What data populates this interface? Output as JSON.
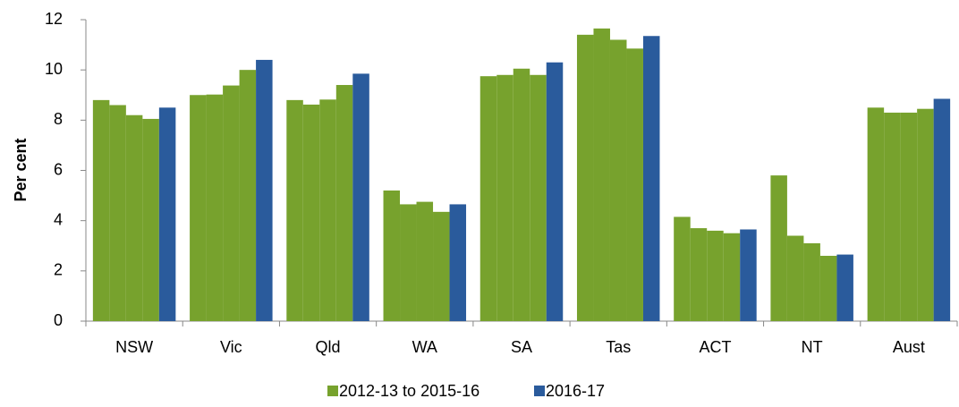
{
  "chart_data": {
    "type": "bar",
    "y_label": "Per cent",
    "categories": [
      "NSW",
      "Vic",
      "Qld",
      "WA",
      "SA",
      "Tas",
      "ACT",
      "NT",
      "Aust"
    ],
    "series": [
      {
        "name": "2012-13 to 2015-16",
        "color": "#77a22d",
        "values": [
          [
            8.8,
            8.6,
            8.2,
            8.05
          ],
          [
            9.0,
            9.02,
            9.38,
            10.0
          ],
          [
            8.8,
            8.62,
            8.82,
            9.4
          ],
          [
            5.2,
            4.65,
            4.75,
            4.35
          ],
          [
            9.75,
            9.8,
            10.05,
            9.8
          ],
          [
            11.4,
            11.65,
            11.2,
            10.85
          ],
          [
            4.15,
            3.7,
            3.6,
            3.5
          ],
          [
            5.8,
            3.4,
            3.1,
            2.6
          ],
          [
            8.5,
            8.3,
            8.3,
            8.45
          ]
        ]
      },
      {
        "name": "2016-17",
        "color": "#2a5b9c",
        "values": [
          8.5,
          10.4,
          9.85,
          4.65,
          10.3,
          11.35,
          3.65,
          2.65,
          8.85
        ]
      }
    ],
    "ylim": [
      0,
      12
    ],
    "yticks": [
      0,
      2,
      4,
      6,
      8,
      10,
      12
    ],
    "grid": false,
    "legend": "bottom"
  }
}
